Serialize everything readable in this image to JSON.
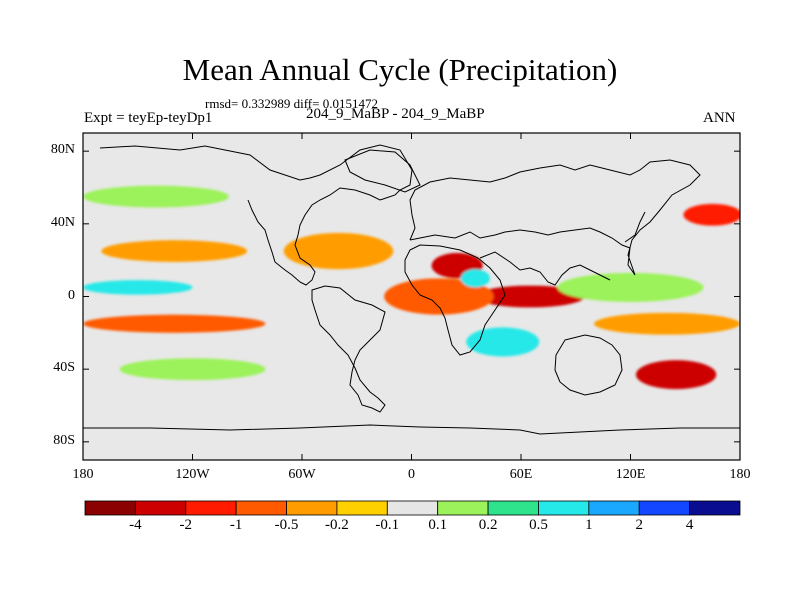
{
  "title": "Mean Annual Cycle (Precipitation)",
  "stats_text": "rmsd= 0.332989 diff= 0.0151472",
  "experiment": "Expt = teyEp-teyDp1",
  "case_label": "204_9_MaBP - 204_9_MaBP",
  "season": "ANN",
  "colors": {
    "background": "#e8e8e8",
    "coast": "#000000",
    "palette": [
      "#8b0000",
      "#cd0000",
      "#ff1a00",
      "#ff5a00",
      "#ff9d00",
      "#ffd000",
      "#e6e6e6",
      "#9bf25a",
      "#2ee38c",
      "#25e8e8",
      "#1aa8ff",
      "#1246ff",
      "#0a0d8f"
    ]
  },
  "chart_data": {
    "type": "heatmap",
    "title": "Mean Annual Cycle (Precipitation)",
    "x_axis": {
      "range": [
        -180,
        180
      ],
      "ticks": [
        -180,
        -120,
        -60,
        0,
        60,
        120,
        180
      ],
      "tick_labels": [
        "180",
        "120W",
        "60W",
        "0",
        "60E",
        "120E",
        "180"
      ]
    },
    "y_axis": {
      "range": [
        -90,
        90
      ],
      "ticks": [
        80,
        40,
        0,
        -40,
        -80
      ],
      "tick_labels": [
        "80N",
        "40N",
        "0",
        "40S",
        "80S"
      ]
    },
    "colorbar": {
      "levels": [
        -4,
        -2,
        -1,
        -0.5,
        -0.2,
        -0.1,
        0.1,
        0.2,
        0.5,
        1,
        2,
        4
      ],
      "labels": [
        "-4",
        "-2",
        "-1",
        "-0.5",
        "-0.2",
        "-0.1",
        "0.1",
        "0.2",
        "0.5",
        "1",
        "2",
        "4"
      ]
    },
    "features": [
      {
        "lon": 25,
        "lat": 17,
        "value": -4,
        "rx": 14,
        "ry": 7
      },
      {
        "lon": 65,
        "lat": 0,
        "value": -3,
        "rx": 30,
        "ry": 6
      },
      {
        "lon": 145,
        "lat": -43,
        "value": -2.5,
        "rx": 22,
        "ry": 8
      },
      {
        "lon": 165,
        "lat": 45,
        "value": -2,
        "rx": 16,
        "ry": 6
      },
      {
        "lon": 15,
        "lat": 0,
        "value": -0.8,
        "rx": 30,
        "ry": 10
      },
      {
        "lon": -130,
        "lat": 25,
        "value": -0.4,
        "rx": 40,
        "ry": 6
      },
      {
        "lon": -130,
        "lat": -15,
        "value": -0.6,
        "rx": 50,
        "ry": 5
      },
      {
        "lon": -40,
        "lat": 25,
        "value": -0.3,
        "rx": 30,
        "ry": 10
      },
      {
        "lon": 140,
        "lat": -15,
        "value": -0.5,
        "rx": 40,
        "ry": 6
      },
      {
        "lon": -150,
        "lat": 5,
        "value": 0.7,
        "rx": 30,
        "ry": 4
      },
      {
        "lon": -140,
        "lat": 55,
        "value": 0.15,
        "rx": 40,
        "ry": 6
      },
      {
        "lon": 50,
        "lat": -25,
        "value": 0.6,
        "rx": 20,
        "ry": 8
      },
      {
        "lon": 120,
        "lat": 5,
        "value": 0.15,
        "rx": 40,
        "ry": 8
      },
      {
        "lon": -120,
        "lat": -40,
        "value": 0.15,
        "rx": 40,
        "ry": 6
      },
      {
        "lon": 35,
        "lat": 10,
        "value": 0.8,
        "rx": 8,
        "ry": 5
      }
    ]
  }
}
